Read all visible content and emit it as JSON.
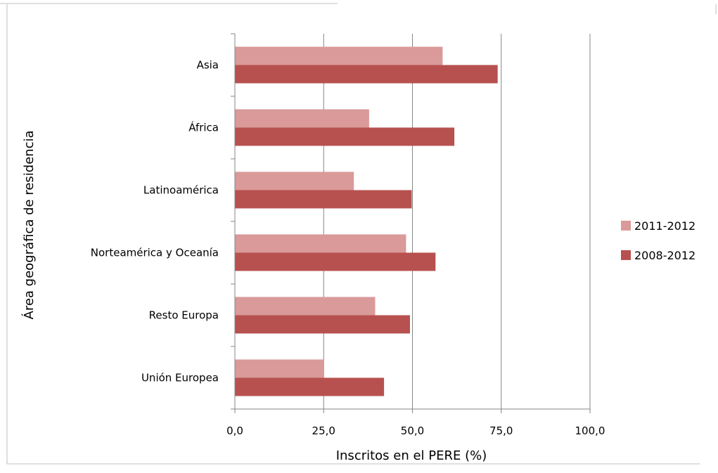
{
  "chart_data": {
    "type": "bar",
    "orientation": "horizontal",
    "title": "",
    "categories": [
      "Asia",
      "África",
      "Latinoamérica",
      "Norteamérica y Oceanía",
      "Resto Europa",
      "Unión Europea"
    ],
    "series": [
      {
        "name": "2011-2012",
        "color": "#d99a99",
        "values": [
          58.5,
          37.8,
          33.5,
          48.2,
          39.5,
          25.0
        ]
      },
      {
        "name": "2008-2012",
        "color": "#b7514f",
        "values": [
          74.0,
          61.8,
          49.8,
          56.5,
          49.3,
          42.0
        ]
      }
    ],
    "xlabel": "Inscritos en el PERE (%)",
    "ylabel": "Área geográfica de residencia",
    "xlim": [
      0,
      100
    ],
    "xticks": [
      "0,0",
      "25,0",
      "50,0",
      "75,0",
      "100,0"
    ],
    "grid": "vertical",
    "legend_position": "right"
  }
}
